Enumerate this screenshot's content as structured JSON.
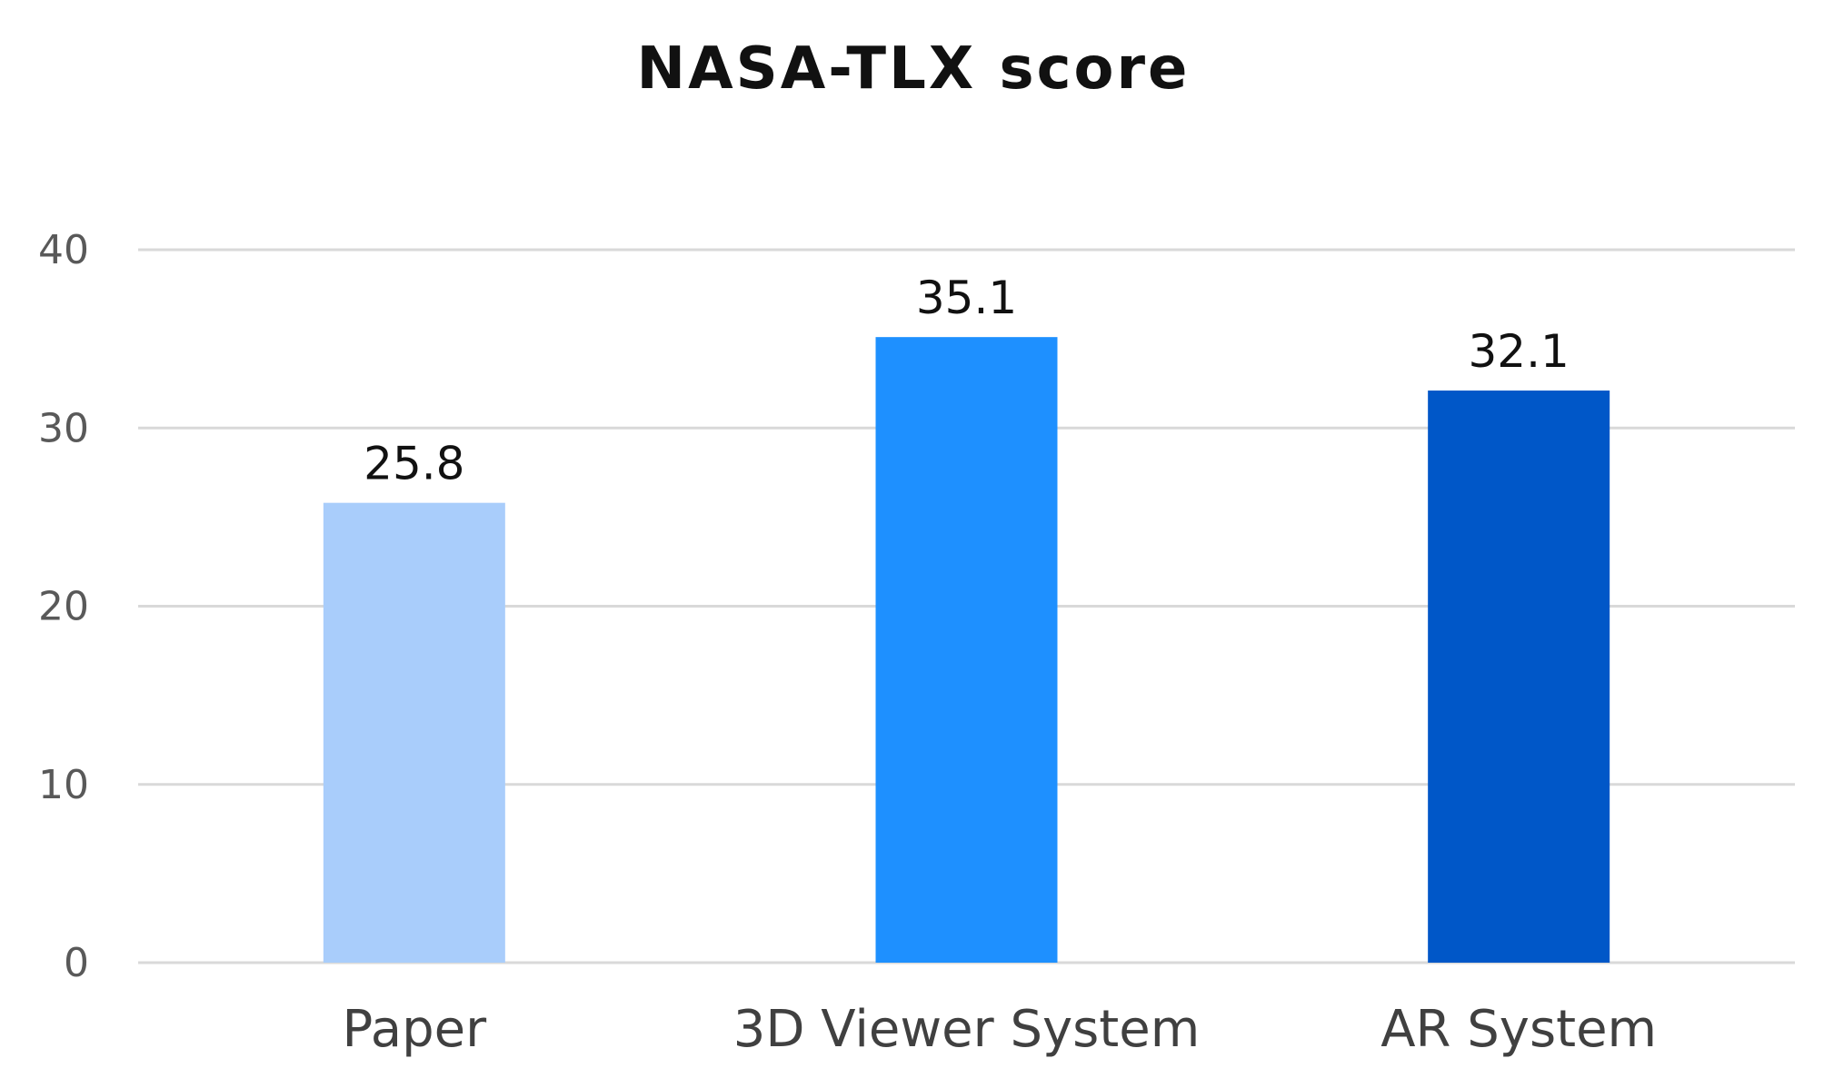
{
  "chart_data": {
    "type": "bar",
    "title": "NASA-TLX score",
    "categories": [
      "Paper",
      "3D Viewer System",
      "AR System"
    ],
    "values": [
      25.8,
      35.1,
      32.1
    ],
    "data_labels": [
      "25.8",
      "35.1",
      "32.1"
    ],
    "colors": [
      "#a9cdfb",
      "#1e90ff",
      "#0057c8"
    ],
    "ylim": [
      0,
      40
    ],
    "yticks": [
      0,
      10,
      20,
      30,
      40
    ],
    "grid": true,
    "legend": "none",
    "xlabel": "",
    "ylabel": ""
  }
}
